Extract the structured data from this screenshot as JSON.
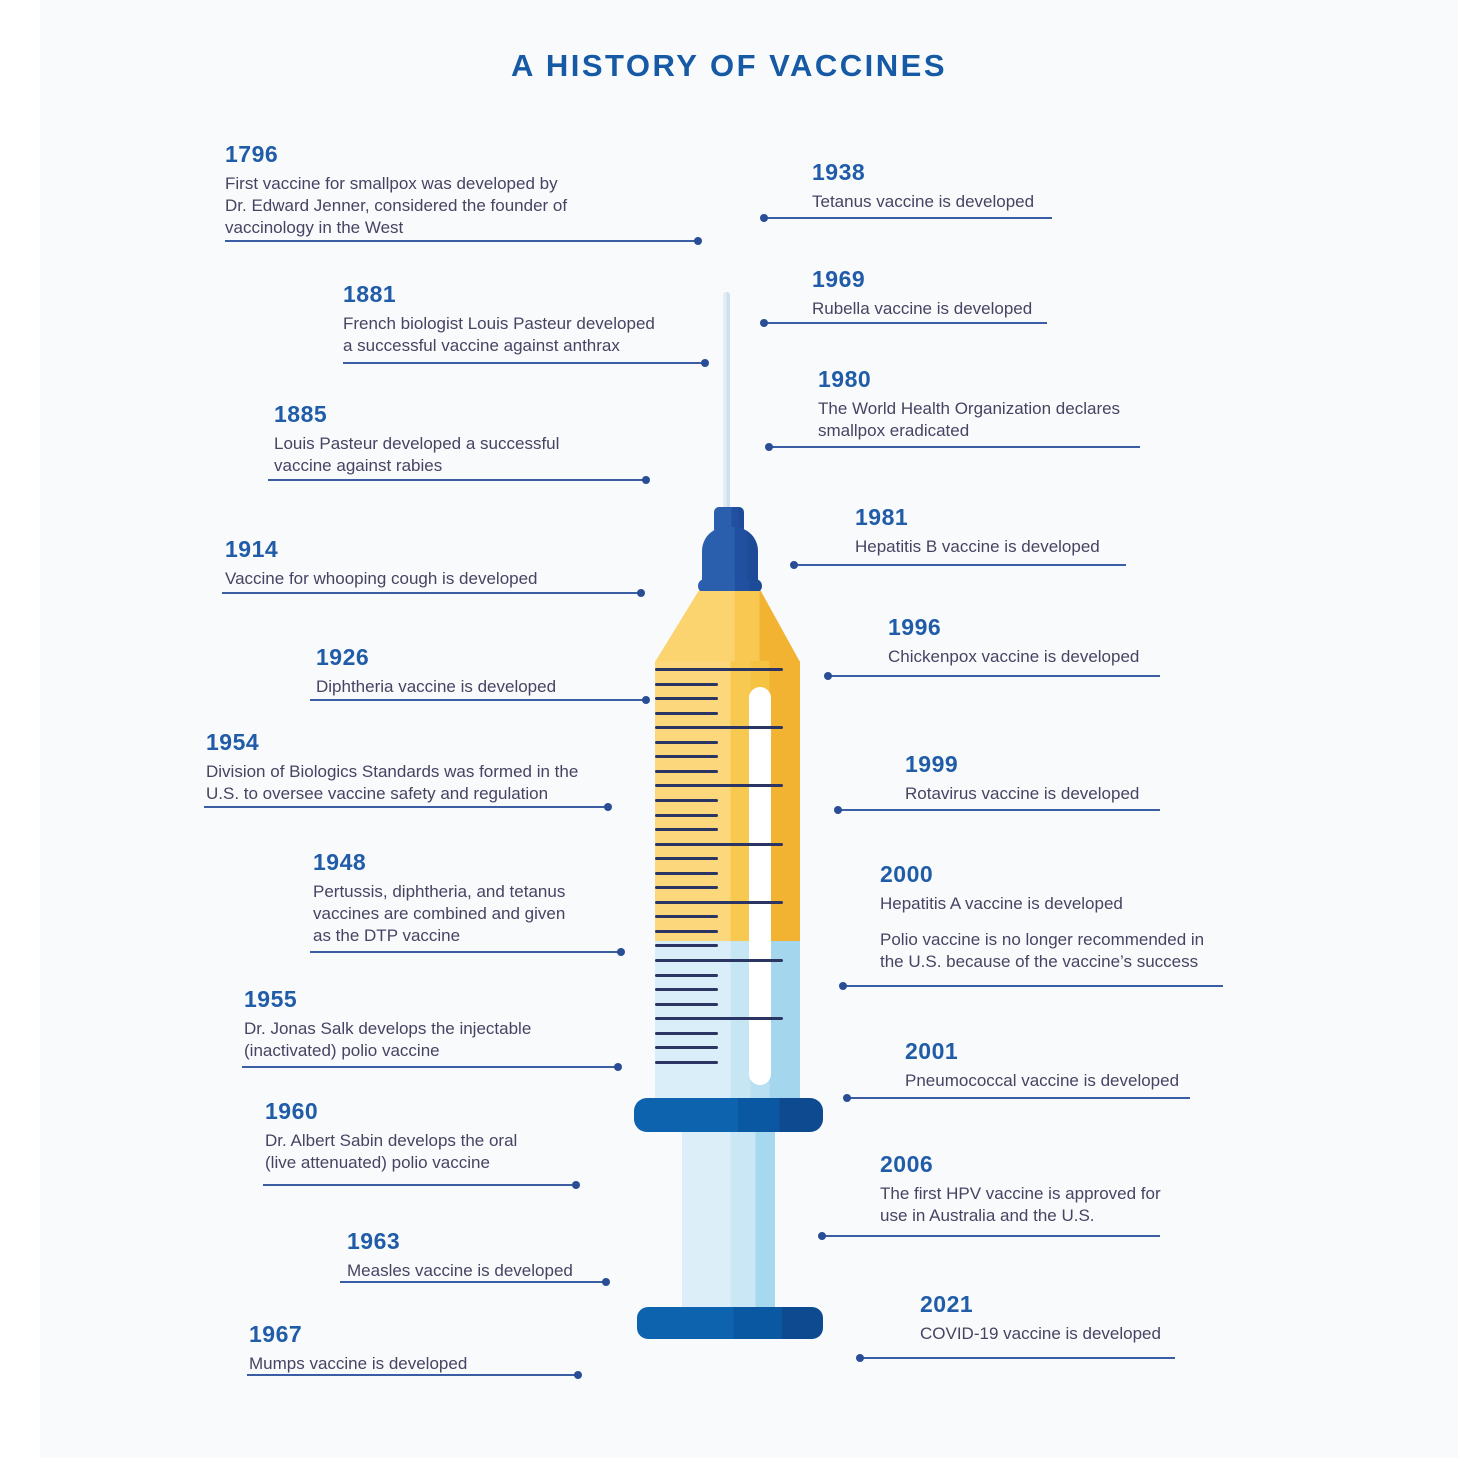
{
  "title": "A HISTORY OF VACCINES",
  "colors": {
    "background": "#f8fafc",
    "title_blue": "#1659a5",
    "year_blue": "#205ca7",
    "text_navy": "#464462",
    "connector_blue": "#3a5da3",
    "syringe_cap_blue": "#2a5fae",
    "barrel_yellow": "#f8c951",
    "liquid_light_blue": "#c6e6f4",
    "flange_blue": "#0d63ae",
    "tick_navy": "#2b3564"
  },
  "timeline": {
    "left": [
      {
        "year": "1796",
        "desc": "First vaccine for smallpox was developed by\nDr. Edward Jenner, considered the founder of\nvaccinology in the West"
      },
      {
        "year": "1881",
        "desc": "French biologist Louis Pasteur developed\na successful vaccine against anthrax"
      },
      {
        "year": "1885",
        "desc": "Louis Pasteur developed a successful\nvaccine against rabies"
      },
      {
        "year": "1914",
        "desc": "Vaccine for whooping cough is developed"
      },
      {
        "year": "1926",
        "desc": "Diphtheria vaccine is developed"
      },
      {
        "year": "1954",
        "desc": "Division of Biologics Standards was formed in the\nU.S. to oversee vaccine safety and regulation"
      },
      {
        "year": "1948",
        "desc": "Pertussis, diphtheria, and tetanus\nvaccines are combined and given\nas the DTP vaccine"
      },
      {
        "year": "1955",
        "desc": "Dr. Jonas Salk develops the injectable\n(inactivated) polio vaccine"
      },
      {
        "year": "1960",
        "desc": "Dr. Albert Sabin develops the oral\n(live attenuated) polio vaccine"
      },
      {
        "year": "1963",
        "desc": "Measles vaccine is developed"
      },
      {
        "year": "1967",
        "desc": "Mumps vaccine is developed"
      }
    ],
    "right": [
      {
        "year": "1938",
        "desc": "Tetanus vaccine is developed"
      },
      {
        "year": "1969",
        "desc": "Rubella vaccine is developed"
      },
      {
        "year": "1980",
        "desc": "The World Health Organization declares\nsmallpox eradicated"
      },
      {
        "year": "1981",
        "desc": "Hepatitis B vaccine is developed"
      },
      {
        "year": "1996",
        "desc": "Chickenpox vaccine is developed"
      },
      {
        "year": "1999",
        "desc": "Rotavirus vaccine is developed"
      },
      {
        "year": "2000",
        "desc": "Hepatitis A vaccine is developed",
        "desc2": "Polio vaccine is no longer recommended in\nthe U.S. because of the vaccine’s success"
      },
      {
        "year": "2001",
        "desc": "Pneumococcal vaccine is developed"
      },
      {
        "year": "2006",
        "desc": "The first HPV vaccine is approved for\nuse in Australia and the U.S."
      },
      {
        "year": "2021",
        "desc": "COVID-19 vaccine is developed"
      }
    ]
  }
}
